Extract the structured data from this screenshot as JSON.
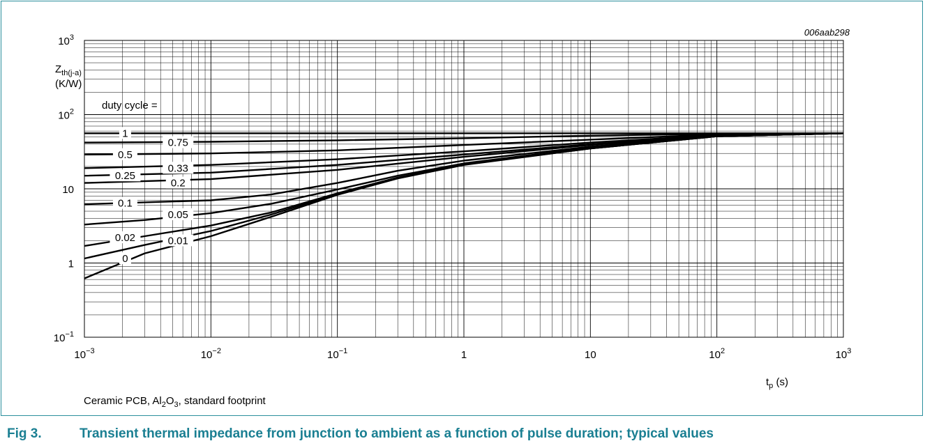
{
  "chart_data": {
    "type": "line",
    "figure_id": "006aab298",
    "x_log": true,
    "y_log": true,
    "xlim": [
      0.001,
      1000
    ],
    "ylim": [
      0.1,
      1000
    ],
    "grid": true,
    "x_ticks": [
      {
        "value": 0.001,
        "base": "10",
        "exp": "−3"
      },
      {
        "value": 0.01,
        "base": "10",
        "exp": "−2"
      },
      {
        "value": 0.1,
        "base": "10",
        "exp": "−1"
      },
      {
        "value": 1,
        "base": "1",
        "exp": ""
      },
      {
        "value": 10,
        "base": "10",
        "exp": ""
      },
      {
        "value": 100,
        "base": "10",
        "exp": "2"
      },
      {
        "value": 1000,
        "base": "10",
        "exp": "3"
      }
    ],
    "y_ticks": [
      {
        "value": 0.1,
        "base": "10",
        "exp": "−1"
      },
      {
        "value": 1,
        "base": "1",
        "exp": ""
      },
      {
        "value": 10,
        "base": "10",
        "exp": ""
      },
      {
        "value": 100,
        "base": "10",
        "exp": "2"
      },
      {
        "value": 1000,
        "base": "10",
        "exp": "3"
      }
    ],
    "xlabel": {
      "main": "t",
      "sub": "p",
      "unit": " (s)"
    },
    "ylabel": {
      "main": "Z",
      "sub": "th(j-a)",
      "unit": "(K/W)"
    },
    "legend_title": "duty cycle =",
    "series": [
      {
        "name": "1",
        "x": [
          0.001,
          1000
        ],
        "y": [
          56,
          56
        ]
      },
      {
        "name": "0.75",
        "x": [
          0.001,
          0.01,
          0.1,
          1,
          10,
          100,
          1000
        ],
        "y": [
          42,
          43,
          45,
          48,
          52,
          55,
          56
        ]
      },
      {
        "name": "0.5",
        "x": [
          0.001,
          0.01,
          0.1,
          1,
          10,
          100,
          1000
        ],
        "y": [
          29,
          30,
          33,
          39,
          46,
          54,
          56
        ]
      },
      {
        "name": "0.33",
        "x": [
          0.001,
          0.01,
          0.1,
          1,
          10,
          100,
          1000
        ],
        "y": [
          19,
          21,
          25,
          32,
          42,
          53,
          56
        ]
      },
      {
        "name": "0.25",
        "x": [
          0.001,
          0.01,
          0.1,
          1,
          10,
          100,
          1000
        ],
        "y": [
          15,
          16.5,
          21,
          29,
          40,
          52,
          56
        ]
      },
      {
        "name": "0.2",
        "x": [
          0.001,
          0.01,
          0.1,
          1,
          10,
          100,
          1000
        ],
        "y": [
          12,
          13.5,
          18,
          27,
          39,
          52,
          56
        ]
      },
      {
        "name": "0.1",
        "x": [
          0.001,
          0.01,
          0.03,
          0.1,
          0.3,
          1,
          10,
          100,
          1000
        ],
        "y": [
          6.2,
          7,
          8.4,
          12,
          17.5,
          24,
          37,
          51,
          56
        ]
      },
      {
        "name": "0.05",
        "x": [
          0.001,
          0.003,
          0.01,
          0.03,
          0.1,
          0.3,
          1,
          10,
          100,
          1000
        ],
        "y": [
          3.3,
          3.8,
          4.7,
          6.3,
          9.8,
          15,
          22,
          36,
          51,
          56
        ]
      },
      {
        "name": "0.02",
        "x": [
          0.001,
          0.003,
          0.01,
          0.03,
          0.1,
          0.3,
          1,
          10,
          100,
          1000
        ],
        "y": [
          1.7,
          2.3,
          3.2,
          4.8,
          8.7,
          14.2,
          21.5,
          35,
          51,
          56
        ]
      },
      {
        "name": "0.01",
        "x": [
          0.001,
          0.003,
          0.01,
          0.03,
          0.1,
          0.3,
          1,
          10,
          100,
          1000
        ],
        "y": [
          1.15,
          1.75,
          2.7,
          4.5,
          8.5,
          14,
          21.2,
          35,
          51,
          56
        ]
      },
      {
        "name": "0",
        "x": [
          0.001,
          0.003,
          0.01,
          0.03,
          0.1,
          0.3,
          1,
          10,
          100,
          1000
        ],
        "y": [
          0.62,
          1.35,
          2.3,
          4.2,
          8.3,
          13.8,
          21,
          35,
          51,
          56
        ]
      }
    ],
    "labels": [
      {
        "text": "1",
        "x": 0.0021,
        "y": 56
      },
      {
        "text": "0.75",
        "x": 0.0055,
        "y": 42
      },
      {
        "text": "0.5",
        "x": 0.0021,
        "y": 29
      },
      {
        "text": "0.33",
        "x": 0.0055,
        "y": 19
      },
      {
        "text": "0.25",
        "x": 0.0021,
        "y": 15
      },
      {
        "text": "0.2",
        "x": 0.0055,
        "y": 12
      },
      {
        "text": "0.1",
        "x": 0.0021,
        "y": 6.4
      },
      {
        "text": "0.05",
        "x": 0.0055,
        "y": 4.5
      },
      {
        "text": "0.02",
        "x": 0.0021,
        "y": 2.2
      },
      {
        "text": "0.01",
        "x": 0.0055,
        "y": 2.0
      },
      {
        "text": "0",
        "x": 0.0021,
        "y": 1.15
      }
    ]
  },
  "note": {
    "pre": "Ceramic PCB, Al",
    "sub1": "2",
    "mid": "O",
    "sub2": "3",
    "post": ", standard footprint"
  },
  "caption": {
    "number": "Fig 3.",
    "text": "Transient thermal impedance from junction to ambient as a function of pulse duration; typical values"
  }
}
